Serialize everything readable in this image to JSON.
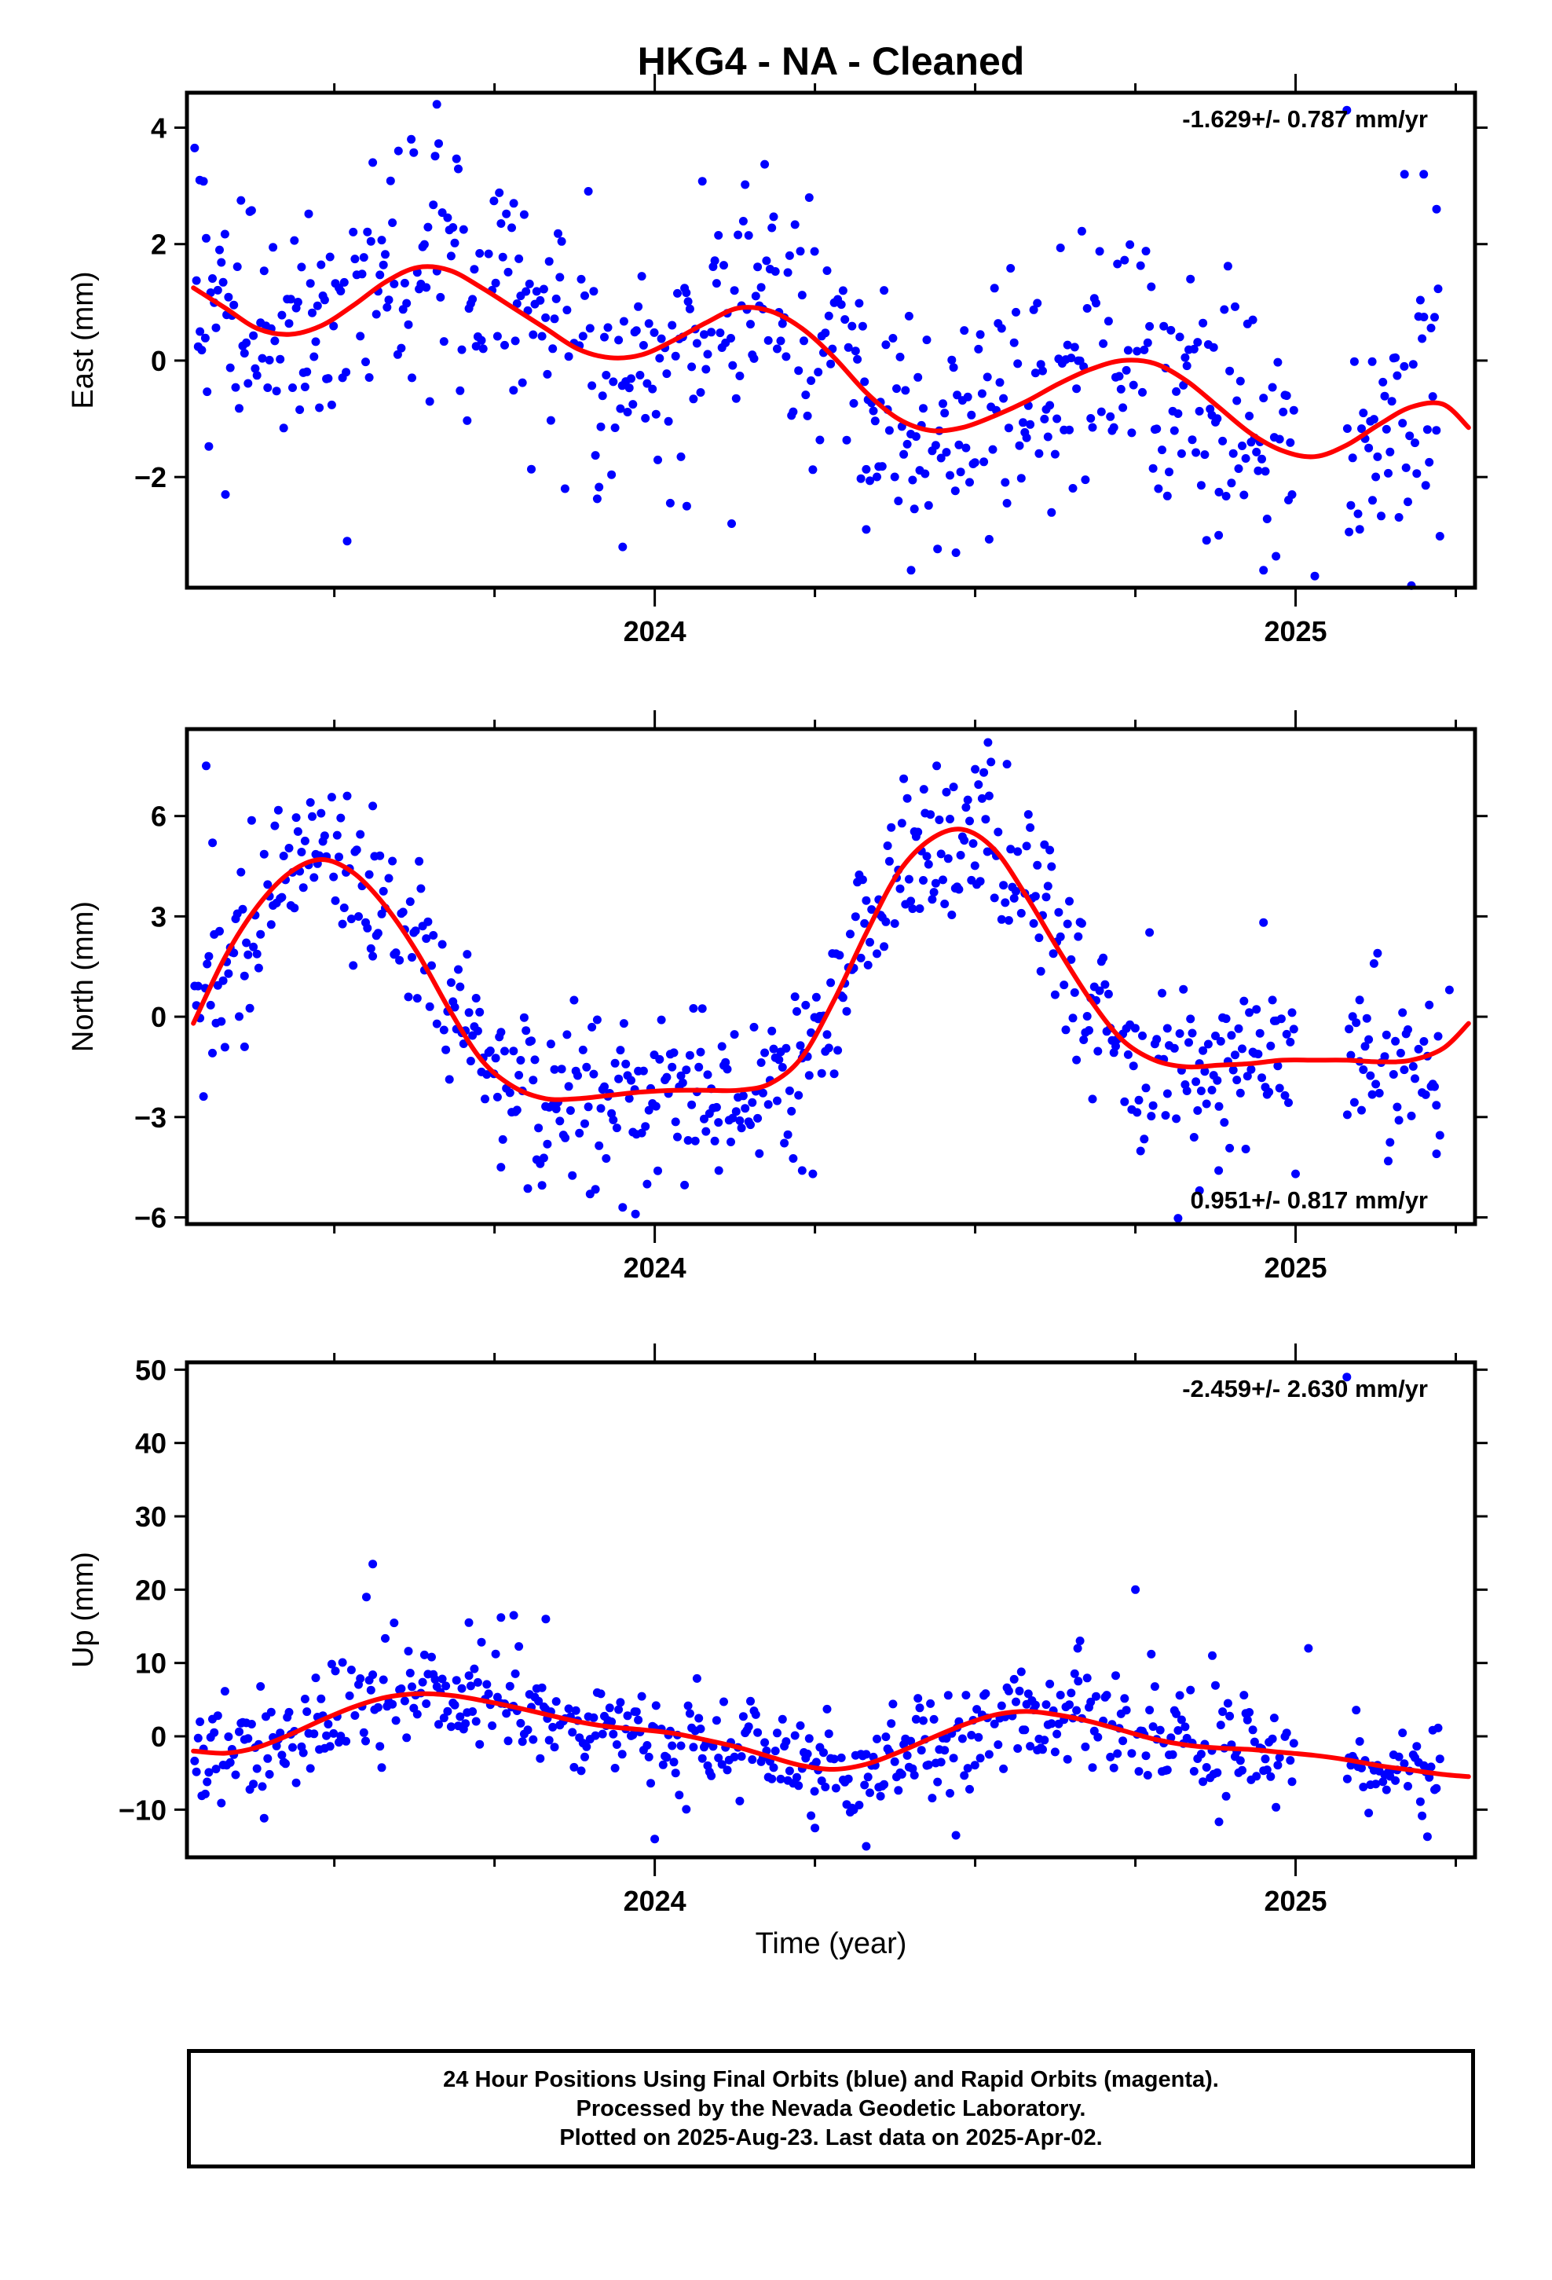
{
  "title": "HKG4  - NA - Cleaned",
  "xlabel": "Time (year)",
  "colors": {
    "final": "#0000ff",
    "fit": "#ff0000",
    "axis": "#000000"
  },
  "chart_data": [
    {
      "type": "scatter",
      "name": "east",
      "ylabel": "East (mm)",
      "rate": "-1.629+/- 0.787 mm/yr",
      "rate_position": "top-right",
      "xlim": [
        2023.27,
        2025.28
      ],
      "ylim": [
        -3.9,
        4.6
      ],
      "yticks": [
        {
          "v": 4,
          "label": "4"
        },
        {
          "v": 2,
          "label": "2"
        },
        {
          "v": 0,
          "label": "0"
        },
        {
          "v": -2,
          "label": "−2"
        }
      ],
      "xticks": [
        {
          "v": 2024.0,
          "label": "2024"
        },
        {
          "v": 2025.0,
          "label": "2025"
        }
      ],
      "minor_xticks": [
        2023.5,
        2023.75,
        2024.25,
        2024.5,
        2024.75,
        2025.25
      ],
      "fit": {
        "x": [
          2023.28,
          2023.33,
          2023.38,
          2023.43,
          2023.48,
          2023.53,
          2023.58,
          2023.63,
          2023.68,
          2023.73,
          2023.78,
          2023.83,
          2023.88,
          2023.93,
          2023.98,
          2024.03,
          2024.08,
          2024.13,
          2024.18,
          2024.23,
          2024.28,
          2024.33,
          2024.38,
          2024.43,
          2024.48,
          2024.53,
          2024.58,
          2024.63,
          2024.68,
          2024.73,
          2024.78,
          2024.83,
          2024.88,
          2024.93,
          2024.98,
          2025.03,
          2025.08,
          2025.13,
          2025.18,
          2025.23,
          2025.27
        ],
        "y": [
          1.25,
          0.9,
          0.55,
          0.45,
          0.6,
          0.95,
          1.35,
          1.6,
          1.55,
          1.25,
          0.9,
          0.55,
          0.2,
          0.05,
          0.1,
          0.35,
          0.65,
          0.9,
          0.85,
          0.55,
          0.05,
          -0.55,
          -1.0,
          -1.2,
          -1.15,
          -0.95,
          -0.7,
          -0.4,
          -0.15,
          0.0,
          -0.05,
          -0.35,
          -0.8,
          -1.25,
          -1.55,
          -1.65,
          -1.45,
          -1.1,
          -0.8,
          -0.75,
          -1.15
        ]
      },
      "points": {
        "amp": 1.05,
        "outliers": [
          [
            2023.29,
            3.1
          ],
          [
            2023.3,
            2.1
          ],
          [
            2023.33,
            -2.3
          ],
          [
            2023.52,
            -3.1
          ],
          [
            2023.56,
            3.4
          ],
          [
            2023.6,
            3.6
          ],
          [
            2023.62,
            3.8
          ],
          [
            2023.66,
            4.4
          ],
          [
            2023.78,
            2.7
          ],
          [
            2023.86,
            -2.2
          ],
          [
            2023.95,
            -3.2
          ],
          [
            2024.05,
            -2.5
          ],
          [
            2024.12,
            -2.8
          ],
          [
            2024.33,
            -2.9
          ],
          [
            2024.4,
            -3.6
          ],
          [
            2024.47,
            -3.3
          ],
          [
            2024.88,
            -3.0
          ],
          [
            2024.95,
            -3.6
          ],
          [
            2025.03,
            -3.7
          ],
          [
            2025.12,
            -2.4
          ],
          [
            2025.17,
            3.2
          ],
          [
            2025.2,
            3.2
          ],
          [
            2025.22,
            2.6
          ],
          [
            2025.08,
            4.3
          ]
        ]
      }
    },
    {
      "type": "scatter",
      "name": "north",
      "ylabel": "North (mm)",
      "rate": "0.951+/- 0.817 mm/yr",
      "rate_position": "bottom-right",
      "xlim": [
        2023.27,
        2025.28
      ],
      "ylim": [
        -6.2,
        8.6
      ],
      "yticks": [
        {
          "v": 6,
          "label": "6"
        },
        {
          "v": 3,
          "label": "3"
        },
        {
          "v": 0,
          "label": "0"
        },
        {
          "v": -3,
          "label": "−3"
        },
        {
          "v": -6,
          "label": "−6"
        }
      ],
      "xticks": [
        {
          "v": 2024.0,
          "label": "2024"
        },
        {
          "v": 2025.0,
          "label": "2025"
        }
      ],
      "minor_xticks": [
        2023.5,
        2023.75,
        2024.25,
        2024.5,
        2024.75,
        2025.25
      ],
      "fit": {
        "x": [
          2023.28,
          2023.33,
          2023.38,
          2023.43,
          2023.48,
          2023.53,
          2023.58,
          2023.63,
          2023.68,
          2023.73,
          2023.78,
          2023.83,
          2023.88,
          2023.93,
          2023.98,
          2024.03,
          2024.08,
          2024.13,
          2024.18,
          2024.23,
          2024.28,
          2024.33,
          2024.38,
          2024.43,
          2024.48,
          2024.53,
          2024.58,
          2024.63,
          2024.68,
          2024.73,
          2024.78,
          2024.83,
          2024.88,
          2024.93,
          2024.98,
          2025.03,
          2025.08,
          2025.13,
          2025.18,
          2025.23,
          2025.27
        ],
        "y": [
          -0.2,
          1.8,
          3.3,
          4.3,
          4.7,
          4.3,
          3.3,
          1.9,
          0.2,
          -1.3,
          -2.1,
          -2.45,
          -2.45,
          -2.35,
          -2.25,
          -2.2,
          -2.2,
          -2.2,
          -2.0,
          -1.2,
          0.5,
          2.5,
          4.3,
          5.3,
          5.6,
          5.0,
          3.6,
          2.0,
          0.5,
          -0.7,
          -1.3,
          -1.5,
          -1.45,
          -1.4,
          -1.3,
          -1.3,
          -1.3,
          -1.35,
          -1.3,
          -0.95,
          -0.2
        ]
      },
      "points": {
        "amp": 1.25,
        "outliers": [
          [
            2023.3,
            7.5
          ],
          [
            2023.31,
            5.2
          ],
          [
            2023.36,
            -0.9
          ],
          [
            2023.52,
            6.6
          ],
          [
            2023.56,
            6.3
          ],
          [
            2023.76,
            -4.5
          ],
          [
            2023.95,
            -5.7
          ],
          [
            2023.97,
            -5.9
          ],
          [
            2024.1,
            -4.6
          ],
          [
            2024.23,
            -4.6
          ],
          [
            2024.42,
            6.8
          ],
          [
            2024.44,
            7.5
          ],
          [
            2024.52,
            8.2
          ],
          [
            2024.5,
            7.4
          ],
          [
            2024.8,
            -2.3
          ],
          [
            2024.85,
            -5.2
          ],
          [
            2024.88,
            -4.6
          ],
          [
            2025.0,
            -4.7
          ],
          [
            2025.1,
            0.5
          ],
          [
            2025.22,
            -4.1
          ],
          [
            2025.24,
            0.8
          ]
        ]
      }
    },
    {
      "type": "scatter",
      "name": "up",
      "ylabel": "Up (mm)",
      "rate": "-2.459+/- 2.630 mm/yr",
      "rate_position": "top-right",
      "xlim": [
        2023.27,
        2025.28
      ],
      "ylim": [
        -16.5,
        51
      ],
      "yticks": [
        {
          "v": 50,
          "label": "50"
        },
        {
          "v": 40,
          "label": "40"
        },
        {
          "v": 30,
          "label": "30"
        },
        {
          "v": 20,
          "label": "20"
        },
        {
          "v": 10,
          "label": "10"
        },
        {
          "v": 0,
          "label": "0"
        },
        {
          "v": -10,
          "label": "−10"
        }
      ],
      "xticks": [
        {
          "v": 2024.0,
          "label": "2024"
        },
        {
          "v": 2025.0,
          "label": "2025"
        }
      ],
      "minor_xticks": [
        2023.5,
        2023.75,
        2024.25,
        2024.5,
        2024.75,
        2025.25
      ],
      "fit": {
        "x": [
          2023.28,
          2023.33,
          2023.38,
          2023.43,
          2023.48,
          2023.53,
          2023.58,
          2023.63,
          2023.68,
          2023.73,
          2023.78,
          2023.83,
          2023.88,
          2023.93,
          2023.98,
          2024.03,
          2024.08,
          2024.13,
          2024.18,
          2024.23,
          2024.28,
          2024.33,
          2024.38,
          2024.43,
          2024.48,
          2024.53,
          2024.58,
          2024.63,
          2024.68,
          2024.73,
          2024.78,
          2024.83,
          2024.88,
          2024.93,
          2024.98,
          2025.03,
          2025.08,
          2025.13,
          2025.18,
          2025.23,
          2025.27
        ],
        "y": [
          -2.0,
          -2.3,
          -1.5,
          0.2,
          2.2,
          4.0,
          5.3,
          5.8,
          5.6,
          4.9,
          4.0,
          3.0,
          2.0,
          1.3,
          0.9,
          0.4,
          -0.5,
          -1.5,
          -2.8,
          -4.0,
          -4.5,
          -3.8,
          -2.2,
          -0.3,
          1.5,
          2.9,
          3.4,
          2.9,
          2.0,
          0.8,
          -0.4,
          -1.2,
          -1.6,
          -1.8,
          -2.2,
          -2.6,
          -3.2,
          -4.0,
          -4.6,
          -5.2,
          -5.5
        ]
      },
      "points": {
        "amp": 3.6,
        "outliers": [
          [
            2023.56,
            23.5
          ],
          [
            2023.55,
            19.0
          ],
          [
            2023.78,
            16.5
          ],
          [
            2023.83,
            16.0
          ],
          [
            2023.76,
            16.2
          ],
          [
            2023.71,
            15.5
          ],
          [
            2024.0,
            -14.0
          ],
          [
            2024.25,
            -12.5
          ],
          [
            2024.33,
            -15.0
          ],
          [
            2024.47,
            -13.5
          ],
          [
            2024.66,
            12.0
          ],
          [
            2024.75,
            20.0
          ],
          [
            2024.87,
            11.0
          ],
          [
            2025.02,
            12.0
          ],
          [
            2025.08,
            49.0
          ]
        ]
      }
    }
  ],
  "footer": {
    "line1": "24 Hour Positions Using Final Orbits (blue) and Rapid Orbits (magenta).",
    "line2": "Processed by the Nevada Geodetic Laboratory.",
    "line3": "Plotted on 2025-Aug-23. Last data on 2025-Apr-02."
  }
}
